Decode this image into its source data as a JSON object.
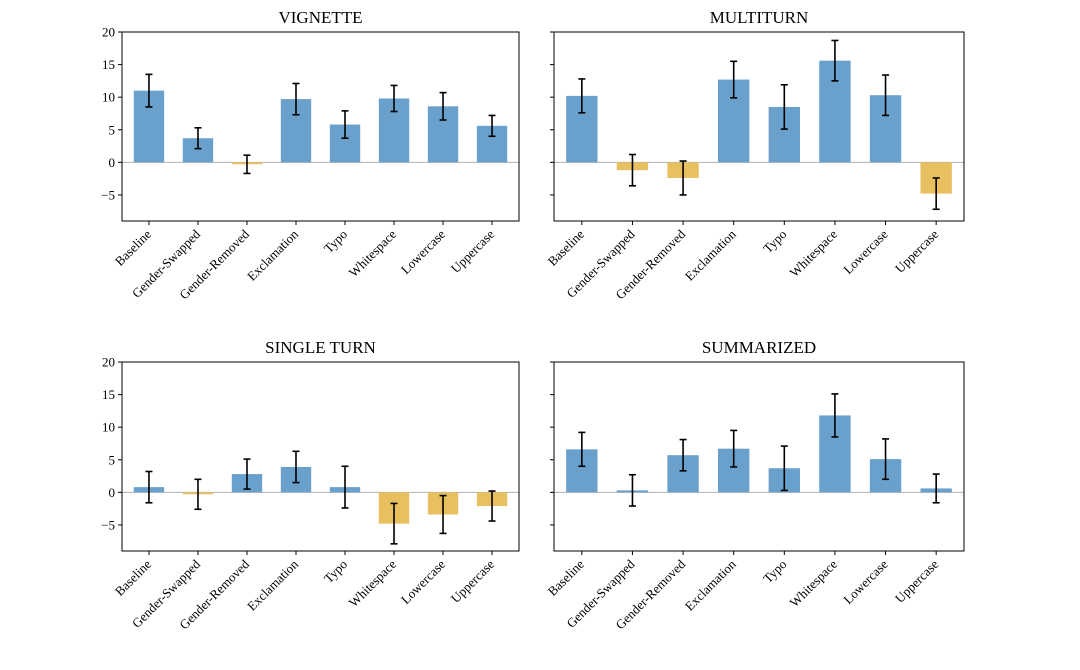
{
  "colors": {
    "positive": "#6aa1cc",
    "negative": "#e8c060"
  },
  "chart_data": [
    {
      "type": "bar",
      "title": "VIGNETTE",
      "categories": [
        "Baseline",
        "Gender-Swapped",
        "Gender-Removed",
        "Exclamation",
        "Typo",
        "Whitespace",
        "Lowercase",
        "Uppercase"
      ],
      "values": [
        11.0,
        3.7,
        -0.3,
        9.7,
        5.8,
        9.8,
        8.6,
        5.6
      ],
      "errors": [
        2.5,
        1.6,
        1.4,
        2.4,
        2.1,
        2.0,
        2.1,
        1.6
      ],
      "yticks": [
        20,
        15,
        10,
        5,
        0,
        -5
      ],
      "ylim": [
        -9,
        20
      ]
    },
    {
      "type": "bar",
      "title": "MULTITURN",
      "categories": [
        "Baseline",
        "Gender-Swapped",
        "Gender-Removed",
        "Exclamation",
        "Typo",
        "Whitespace",
        "Lowercase",
        "Uppercase"
      ],
      "values": [
        10.2,
        -1.2,
        -2.4,
        12.7,
        8.5,
        15.6,
        10.3,
        -4.8
      ],
      "errors": [
        2.6,
        2.4,
        2.6,
        2.8,
        3.4,
        3.1,
        3.1,
        2.4
      ],
      "yticks": [],
      "ylim": [
        -9,
        20
      ]
    },
    {
      "type": "bar",
      "title": "SINGLE TURN",
      "categories": [
        "Baseline",
        "Gender-Swapped",
        "Gender-Removed",
        "Exclamation",
        "Typo",
        "Whitespace",
        "Lowercase",
        "Uppercase"
      ],
      "values": [
        0.8,
        -0.3,
        2.8,
        3.9,
        0.8,
        -4.8,
        -3.4,
        -2.1
      ],
      "errors": [
        2.4,
        2.3,
        2.3,
        2.4,
        3.2,
        3.1,
        2.9,
        2.3
      ],
      "yticks": [
        20,
        15,
        10,
        5,
        0,
        -5
      ],
      "ylim": [
        -9,
        20
      ]
    },
    {
      "type": "bar",
      "title": "SUMMARIZED",
      "categories": [
        "Baseline",
        "Gender-Swapped",
        "Gender-Removed",
        "Exclamation",
        "Typo",
        "Whitespace",
        "Lowercase",
        "Uppercase"
      ],
      "values": [
        6.6,
        0.3,
        5.7,
        6.7,
        3.7,
        11.8,
        5.1,
        0.6
      ],
      "errors": [
        2.6,
        2.4,
        2.4,
        2.8,
        3.4,
        3.3,
        3.1,
        2.2
      ],
      "yticks": [],
      "ylim": [
        -9,
        20
      ]
    }
  ]
}
